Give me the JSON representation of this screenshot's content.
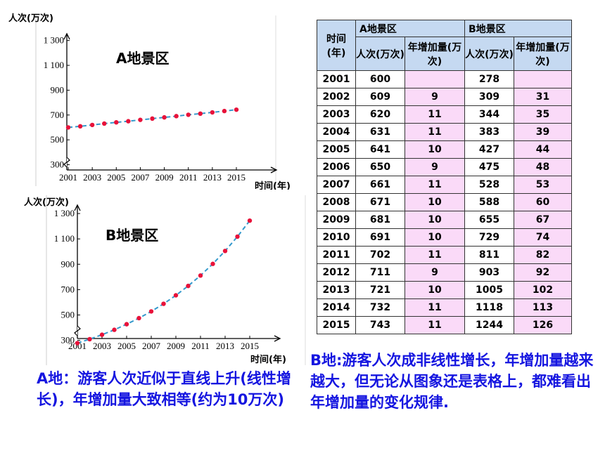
{
  "chart_data": [
    {
      "type": "line",
      "title": "A地景区",
      "ylabel": "人次(万次)",
      "xlabel": "时间(年)",
      "x": [
        2001,
        2002,
        2003,
        2004,
        2005,
        2006,
        2007,
        2008,
        2009,
        2010,
        2011,
        2012,
        2013,
        2014,
        2015
      ],
      "series": [
        {
          "values": [
            600,
            609,
            620,
            631,
            641,
            650,
            661,
            671,
            681,
            691,
            702,
            711,
            721,
            732,
            743
          ]
        }
      ],
      "xticks": [
        "2001",
        "2003",
        "2005",
        "2007",
        "2009",
        "2011",
        "2013",
        "2015"
      ],
      "yticks": [
        "300",
        "500",
        "700",
        "900",
        "1 100",
        "1 300"
      ],
      "ylim": [
        150,
        1400
      ],
      "line_color": "#3399cc",
      "marker_color": "#e8123a"
    },
    {
      "type": "line",
      "title": "B地景区",
      "ylabel": "人次(万次)",
      "xlabel": "时间(年)",
      "x": [
        2001,
        2002,
        2003,
        2004,
        2005,
        2006,
        2007,
        2008,
        2009,
        2010,
        2011,
        2012,
        2013,
        2014,
        2015
      ],
      "series": [
        {
          "values": [
            278,
            309,
            344,
            383,
            427,
            475,
            528,
            588,
            655,
            729,
            811,
            903,
            1005,
            1118,
            1244
          ]
        }
      ],
      "xticks": [
        "2001",
        "2003",
        "2005",
        "2007",
        "2009",
        "2011",
        "2013",
        "2015"
      ],
      "yticks": [
        "300",
        "500",
        "700",
        "900",
        "1 100",
        "1 300"
      ],
      "ylim": [
        220,
        1400
      ],
      "line_color": "#3399cc",
      "marker_color": "#e8123a"
    },
    {
      "type": "table",
      "headers": {
        "time": "时间(年)",
        "groupA": "A地景区",
        "groupB": "B地景区",
        "visits": "人次(万次)",
        "increase": "年增加量(万次)"
      },
      "rows": [
        [
          "2001",
          "600",
          "",
          "278",
          ""
        ],
        [
          "2002",
          "609",
          "9",
          "309",
          "31"
        ],
        [
          "2003",
          "620",
          "11",
          "344",
          "35"
        ],
        [
          "2004",
          "631",
          "11",
          "383",
          "39"
        ],
        [
          "2005",
          "641",
          "10",
          "427",
          "44"
        ],
        [
          "2006",
          "650",
          "9",
          "475",
          "48"
        ],
        [
          "2007",
          "661",
          "11",
          "528",
          "53"
        ],
        [
          "2008",
          "671",
          "10",
          "588",
          "60"
        ],
        [
          "2009",
          "681",
          "10",
          "655",
          "67"
        ],
        [
          "2010",
          "691",
          "10",
          "729",
          "74"
        ],
        [
          "2011",
          "702",
          "11",
          "811",
          "82"
        ],
        [
          "2012",
          "711",
          "9",
          "903",
          "92"
        ],
        [
          "2013",
          "721",
          "10",
          "1005",
          "102"
        ],
        [
          "2014",
          "732",
          "11",
          "1118",
          "113"
        ],
        [
          "2015",
          "743",
          "11",
          "1244",
          "126"
        ]
      ]
    }
  ],
  "notes": {
    "a": "A地：游客人次近似于直线上升(线性增长)，年增加量大致相等(约为10万次)",
    "b": "B地:游客人次成非线性增长，年增加量越来越大，但无论从图象还是表格上，都难看出年增加量的变化规律."
  }
}
